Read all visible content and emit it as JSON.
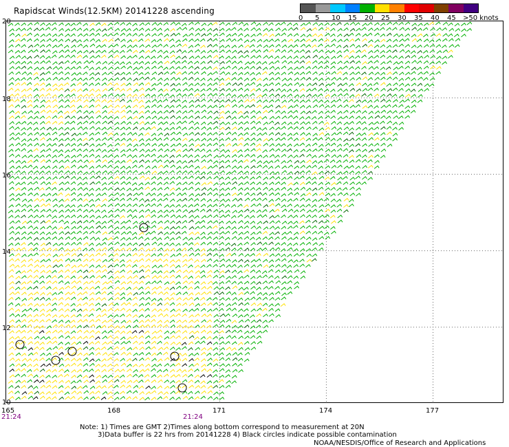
{
  "title": "Rapidscat Winds(12.5KM) 20141228 ascending",
  "legend": {
    "labels": [
      "0",
      "5",
      "10",
      "15",
      "20",
      "25",
      "30",
      "35",
      "40",
      "45",
      ">50 knots"
    ],
    "colors": [
      "#555555",
      "#999999",
      "#00c8ff",
      "#0080ff",
      "#00b000",
      "#ffe000",
      "#ff8000",
      "#ff0000",
      "#e00000",
      "#804000",
      "#800060",
      "#400080"
    ]
  },
  "axes": {
    "lat_labels": [
      "20",
      "18",
      "16",
      "14",
      "12",
      "10"
    ],
    "lon_labels": [
      "165",
      "168",
      "171",
      "174",
      "177"
    ],
    "time_labels": [
      "21:24",
      "21:24"
    ]
  },
  "map": {
    "lat_range": [
      10,
      20
    ],
    "lon_range": [
      165,
      179
    ],
    "gridlines": true,
    "swath": "lower-left triangle",
    "barb_color_main": "#00b000",
    "barb_color_light": "#ffe000",
    "barb_color_dark": "#006400",
    "barb_color_strong": "#0000ff",
    "contamination_color": "#000000"
  },
  "notes": {
    "line1": "Note: 1) Times are GMT 2)Times along bottom correspond to measurement at 20N",
    "line2": "3)Data buffer is 22 hrs from 20141228 4) Black circles indicate possible contamination"
  },
  "credit": "NOAA/NESDIS/Office of Research and Applications"
}
